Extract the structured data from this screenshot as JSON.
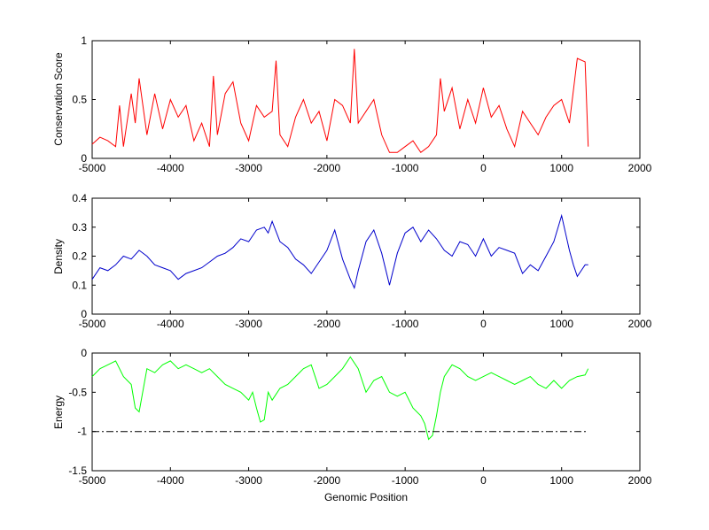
{
  "chart_data": [
    {
      "type": "line",
      "xlim": [
        -5000,
        2000
      ],
      "ylim": [
        0,
        1
      ],
      "xticks": [
        -5000,
        -4000,
        -3000,
        -2000,
        -1000,
        0,
        1000,
        2000
      ],
      "xtick_labels": [
        "-5000",
        "-4000",
        "-3000",
        "-2000",
        "-1000",
        "0",
        "1000",
        "2000"
      ],
      "yticks": [
        0,
        0.5,
        1
      ],
      "ytick_labels": [
        "0",
        "0.5",
        "1"
      ],
      "xlabel": "",
      "ylabel": "Conservation Score",
      "grid": false,
      "series": [
        {
          "color": "#ff0000",
          "x": [
            -5000,
            -4900,
            -4800,
            -4700,
            -4650,
            -4600,
            -4500,
            -4450,
            -4400,
            -4300,
            -4200,
            -4100,
            -4000,
            -3900,
            -3800,
            -3700,
            -3600,
            -3500,
            -3450,
            -3400,
            -3300,
            -3200,
            -3100,
            -3000,
            -2900,
            -2800,
            -2700,
            -2650,
            -2600,
            -2500,
            -2400,
            -2300,
            -2200,
            -2100,
            -2000,
            -1900,
            -1800,
            -1700,
            -1650,
            -1600,
            -1500,
            -1400,
            -1300,
            -1200,
            -1100,
            -1000,
            -900,
            -800,
            -700,
            -600,
            -550,
            -500,
            -400,
            -300,
            -200,
            -100,
            0,
            100,
            200,
            300,
            400,
            500,
            600,
            700,
            800,
            900,
            1000,
            1100,
            1200,
            1300,
            1340
          ],
          "y": [
            0.12,
            0.18,
            0.15,
            0.1,
            0.45,
            0.1,
            0.55,
            0.3,
            0.68,
            0.2,
            0.55,
            0.25,
            0.5,
            0.35,
            0.45,
            0.15,
            0.3,
            0.1,
            0.7,
            0.2,
            0.55,
            0.65,
            0.3,
            0.15,
            0.45,
            0.35,
            0.4,
            0.83,
            0.2,
            0.1,
            0.35,
            0.5,
            0.3,
            0.4,
            0.15,
            0.5,
            0.45,
            0.3,
            0.93,
            0.3,
            0.4,
            0.5,
            0.2,
            0.05,
            0.05,
            0.1,
            0.15,
            0.05,
            0.1,
            0.2,
            0.68,
            0.4,
            0.6,
            0.25,
            0.5,
            0.3,
            0.6,
            0.35,
            0.45,
            0.25,
            0.1,
            0.4,
            0.3,
            0.2,
            0.35,
            0.45,
            0.5,
            0.3,
            0.85,
            0.82,
            0.1
          ]
        }
      ]
    },
    {
      "type": "line",
      "xlim": [
        -5000,
        2000
      ],
      "ylim": [
        0,
        0.4
      ],
      "xticks": [
        -5000,
        -4000,
        -3000,
        -2000,
        -1000,
        0,
        1000,
        2000
      ],
      "xtick_labels": [
        "-5000",
        "-4000",
        "-3000",
        "-2000",
        "-1000",
        "0",
        "1000",
        "2000"
      ],
      "yticks": [
        0,
        0.1,
        0.2,
        0.3,
        0.4
      ],
      "ytick_labels": [
        "0",
        "0.1",
        "0.2",
        "0.3",
        "0.4"
      ],
      "xlabel": "",
      "ylabel": "Density",
      "grid": false,
      "series": [
        {
          "color": "#0000cc",
          "x": [
            -5000,
            -4900,
            -4800,
            -4700,
            -4600,
            -4500,
            -4400,
            -4300,
            -4200,
            -4100,
            -4000,
            -3900,
            -3800,
            -3700,
            -3600,
            -3500,
            -3400,
            -3300,
            -3200,
            -3100,
            -3000,
            -2900,
            -2800,
            -2750,
            -2700,
            -2600,
            -2500,
            -2400,
            -2300,
            -2200,
            -2100,
            -2000,
            -1900,
            -1800,
            -1700,
            -1650,
            -1600,
            -1500,
            -1400,
            -1300,
            -1200,
            -1100,
            -1000,
            -900,
            -800,
            -700,
            -600,
            -500,
            -400,
            -300,
            -200,
            -100,
            0,
            100,
            200,
            300,
            400,
            500,
            600,
            700,
            800,
            900,
            1000,
            1050,
            1100,
            1150,
            1200,
            1250,
            1300,
            1340
          ],
          "y": [
            0.12,
            0.16,
            0.15,
            0.17,
            0.2,
            0.19,
            0.22,
            0.2,
            0.17,
            0.16,
            0.15,
            0.12,
            0.14,
            0.15,
            0.16,
            0.18,
            0.2,
            0.21,
            0.23,
            0.26,
            0.25,
            0.29,
            0.3,
            0.28,
            0.32,
            0.25,
            0.23,
            0.19,
            0.17,
            0.14,
            0.18,
            0.22,
            0.29,
            0.19,
            0.12,
            0.09,
            0.15,
            0.25,
            0.29,
            0.21,
            0.1,
            0.21,
            0.28,
            0.3,
            0.25,
            0.29,
            0.26,
            0.22,
            0.2,
            0.25,
            0.24,
            0.2,
            0.26,
            0.2,
            0.23,
            0.22,
            0.21,
            0.14,
            0.17,
            0.15,
            0.2,
            0.25,
            0.34,
            0.28,
            0.22,
            0.17,
            0.13,
            0.15,
            0.17,
            0.17
          ]
        }
      ]
    },
    {
      "type": "line",
      "xlim": [
        -5000,
        2000
      ],
      "ylim": [
        -1.5,
        0
      ],
      "xticks": [
        -5000,
        -4000,
        -3000,
        -2000,
        -1000,
        0,
        1000,
        2000
      ],
      "xtick_labels": [
        "-5000",
        "-4000",
        "-3000",
        "-2000",
        "-1000",
        "0",
        "1000",
        "2000"
      ],
      "yticks": [
        -1.5,
        -1,
        -0.5,
        0
      ],
      "ytick_labels": [
        "-1.5",
        "-1",
        "-0.5",
        "0"
      ],
      "xlabel": "Genomic Position",
      "ylabel": "Energy",
      "grid": false,
      "series": [
        {
          "color": "#00ff00",
          "x": [
            -5000,
            -4900,
            -4800,
            -4700,
            -4600,
            -4500,
            -4450,
            -4400,
            -4300,
            -4200,
            -4100,
            -4000,
            -3900,
            -3800,
            -3700,
            -3600,
            -3500,
            -3400,
            -3300,
            -3200,
            -3100,
            -3000,
            -2950,
            -2900,
            -2850,
            -2800,
            -2750,
            -2700,
            -2600,
            -2500,
            -2400,
            -2300,
            -2200,
            -2100,
            -2000,
            -1900,
            -1800,
            -1700,
            -1600,
            -1500,
            -1400,
            -1300,
            -1200,
            -1100,
            -1000,
            -900,
            -800,
            -750,
            -700,
            -650,
            -600,
            -550,
            -500,
            -400,
            -300,
            -200,
            -100,
            0,
            100,
            200,
            300,
            400,
            500,
            600,
            700,
            800,
            900,
            1000,
            1100,
            1200,
            1300,
            1340
          ],
          "y": [
            -0.3,
            -0.2,
            -0.15,
            -0.1,
            -0.3,
            -0.4,
            -0.7,
            -0.75,
            -0.2,
            -0.25,
            -0.15,
            -0.1,
            -0.2,
            -0.15,
            -0.2,
            -0.25,
            -0.2,
            -0.3,
            -0.4,
            -0.45,
            -0.5,
            -0.6,
            -0.5,
            -0.7,
            -0.88,
            -0.85,
            -0.5,
            -0.6,
            -0.45,
            -0.4,
            -0.3,
            -0.2,
            -0.15,
            -0.45,
            -0.4,
            -0.3,
            -0.2,
            -0.05,
            -0.2,
            -0.5,
            -0.35,
            -0.3,
            -0.5,
            -0.55,
            -0.5,
            -0.7,
            -0.8,
            -0.9,
            -1.1,
            -1.05,
            -0.8,
            -0.5,
            -0.3,
            -0.15,
            -0.2,
            -0.3,
            -0.35,
            -0.3,
            -0.25,
            -0.3,
            -0.35,
            -0.4,
            -0.35,
            -0.3,
            -0.4,
            -0.45,
            -0.35,
            -0.45,
            -0.35,
            -0.3,
            -0.28,
            -0.2
          ]
        },
        {
          "color": "#000000",
          "style": "dash-dot",
          "x": [
            -5000,
            1340
          ],
          "y": [
            -1,
            -1
          ]
        }
      ]
    }
  ]
}
